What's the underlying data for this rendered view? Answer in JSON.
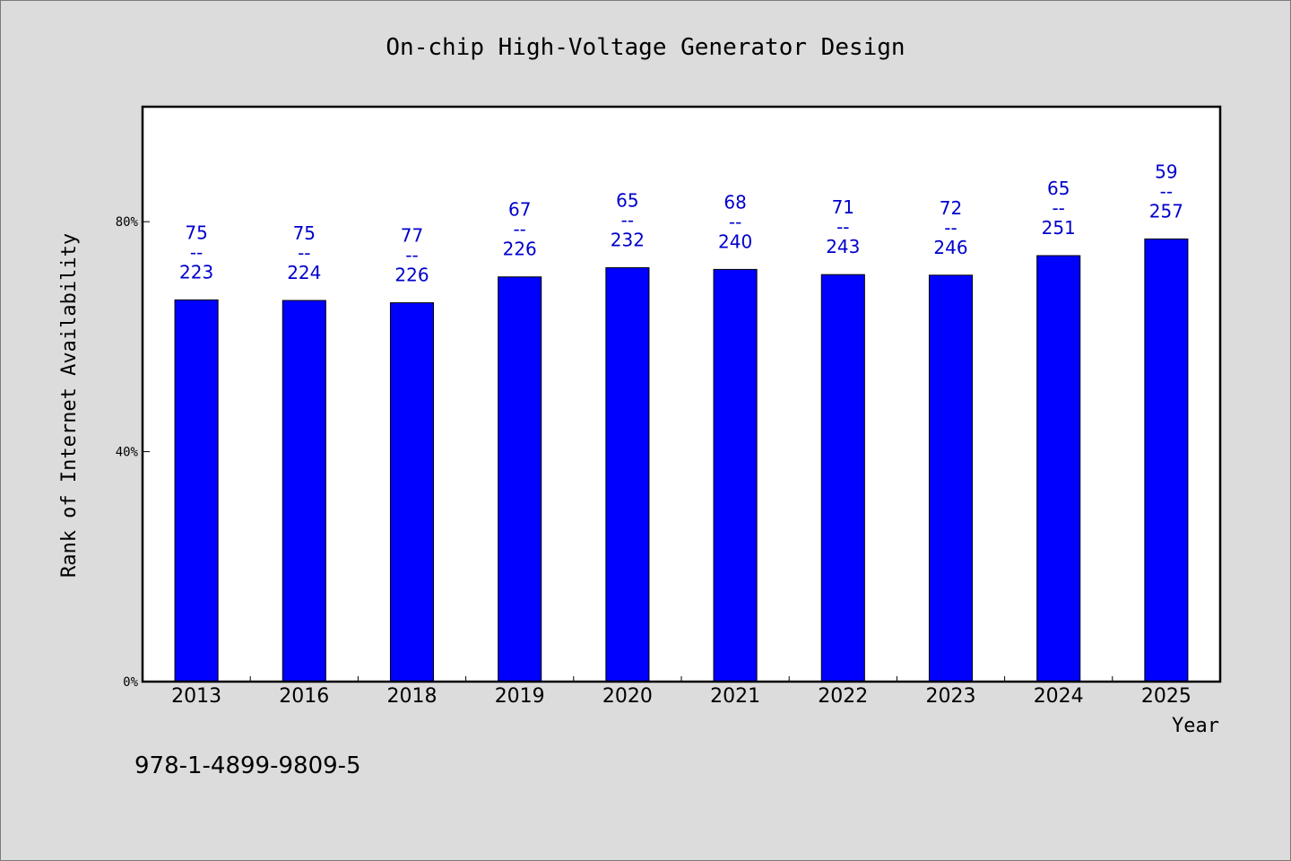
{
  "chart_data": {
    "type": "bar",
    "title": "On-chip High-Voltage Generator Design",
    "xlabel": "Year",
    "ylabel": "Rank of Internet Availability",
    "ylim": [
      0,
      100
    ],
    "yticks": [
      0,
      40,
      80
    ],
    "ytick_labels": [
      "0%",
      "40%",
      "80%"
    ],
    "grid": false,
    "categories": [
      "2013",
      "2016",
      "2018",
      "2019",
      "2020",
      "2021",
      "2022",
      "2023",
      "2024",
      "2025"
    ],
    "series": [
      {
        "values": [
          66.4,
          66.3,
          65.9,
          70.4,
          72.0,
          71.7,
          70.8,
          70.7,
          74.1,
          77.0
        ],
        "color": "#0000ff"
      }
    ],
    "data_labels": [
      {
        "top": "75",
        "sep": "--",
        "bottom": "223"
      },
      {
        "top": "75",
        "sep": "--",
        "bottom": "224"
      },
      {
        "top": "77",
        "sep": "--",
        "bottom": "226"
      },
      {
        "top": "67",
        "sep": "--",
        "bottom": "226"
      },
      {
        "top": "65",
        "sep": "--",
        "bottom": "232"
      },
      {
        "top": "68",
        "sep": "--",
        "bottom": "240"
      },
      {
        "top": "71",
        "sep": "--",
        "bottom": "243"
      },
      {
        "top": "72",
        "sep": "--",
        "bottom": "246"
      },
      {
        "top": "65",
        "sep": "--",
        "bottom": "251"
      },
      {
        "top": "59",
        "sep": "--",
        "bottom": "257"
      }
    ],
    "label_color": "#0000cc"
  },
  "footer": {
    "isbn": "978-1-4899-9809-5"
  }
}
